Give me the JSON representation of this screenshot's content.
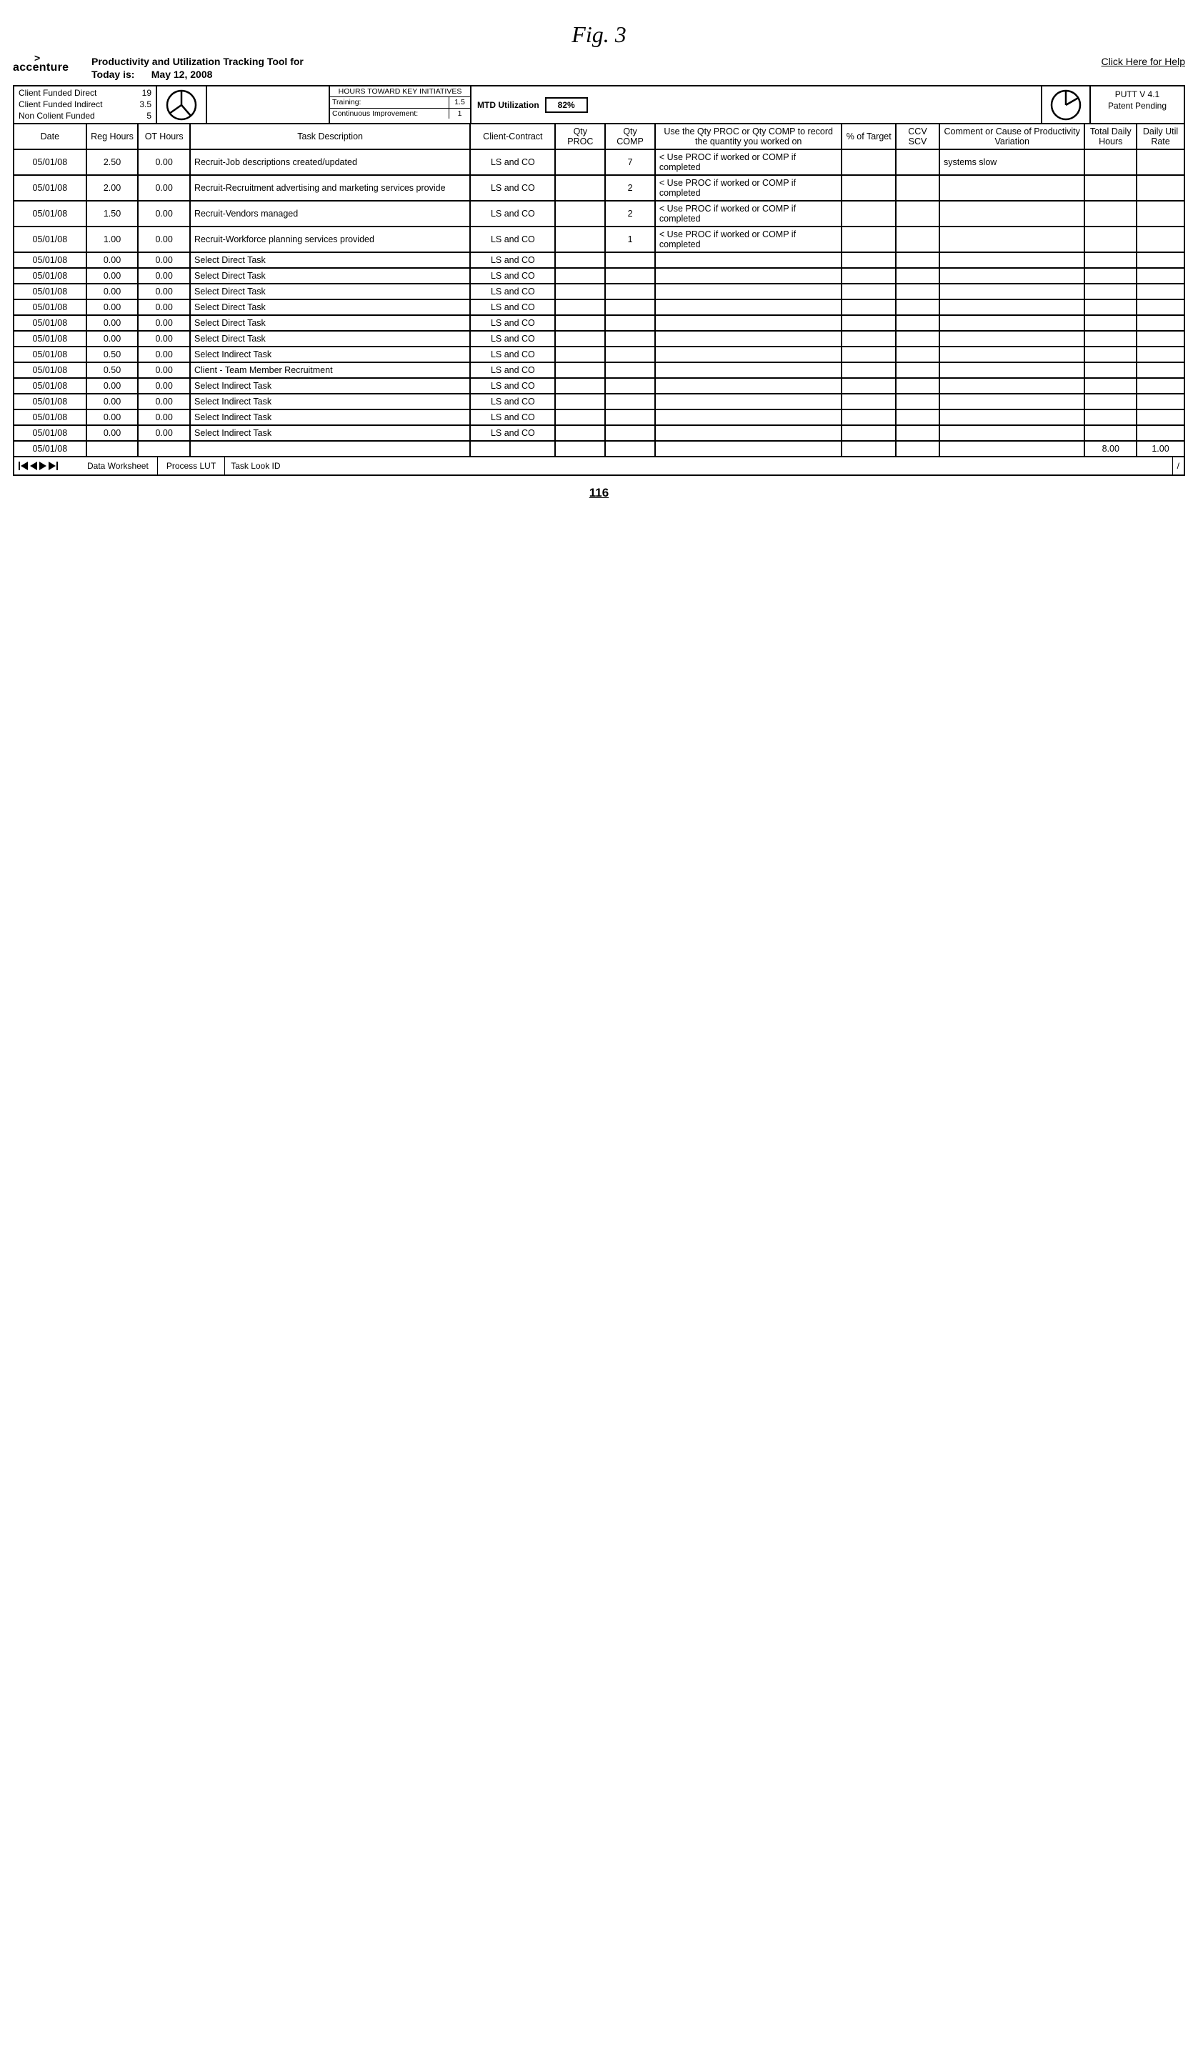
{
  "figure_label": "Fig. 3",
  "logo": "accenture",
  "title": "Productivity and Utilization Tracking Tool for",
  "today_label": "Today is:",
  "today_value": "May 12, 2008",
  "help_link": "Click Here for Help",
  "funding": [
    {
      "label": "Client Funded Direct",
      "value": "19"
    },
    {
      "label": "Client Funded Indirect",
      "value": "3.5"
    },
    {
      "label": "Non Colient Funded",
      "value": "5"
    }
  ],
  "initiatives": {
    "title": "HOURS TOWARD KEY INITIATIVES",
    "rows": [
      {
        "label": "Training:",
        "value": "1.5"
      },
      {
        "label": "Continuous Improvement:",
        "value": "1"
      }
    ]
  },
  "mtd_label": "MTD Utilization",
  "mtd_value": "82%",
  "version_line1": "PUTT V 4.1",
  "version_line2": "Patent Pending",
  "columns": [
    "Date",
    "Reg Hours",
    "OT Hours",
    "Task Description",
    "Client-Contract",
    "Qty PROC",
    "Qty COMP",
    "Use the Qty PROC or Qty COMP to record the quantity you worked on",
    "% of Target",
    "CCV SCV",
    "Comment or Cause of Productivity Variation",
    "Total Daily Hours",
    "Daily Util Rate"
  ],
  "rows": [
    {
      "date": "05/01/08",
      "reg": "2.50",
      "ot": "0.00",
      "desc": "Recruit-Job descriptions created/updated",
      "client": "LS and CO",
      "qp": "",
      "qc": "7",
      "note": "< Use PROC if worked or COMP if completed",
      "pct": "",
      "ccv": "",
      "comment": "systems slow",
      "tdh": "",
      "dur": ""
    },
    {
      "date": "05/01/08",
      "reg": "2.00",
      "ot": "0.00",
      "desc": "Recruit-Recruitment advertising and marketing services provide",
      "client": "LS and CO",
      "qp": "",
      "qc": "2",
      "note": "< Use PROC if worked or COMP if completed",
      "pct": "",
      "ccv": "",
      "comment": "",
      "tdh": "",
      "dur": ""
    },
    {
      "date": "05/01/08",
      "reg": "1.50",
      "ot": "0.00",
      "desc": "Recruit-Vendors managed",
      "client": "LS and CO",
      "qp": "",
      "qc": "2",
      "note": "< Use PROC if worked or COMP if completed",
      "pct": "",
      "ccv": "",
      "comment": "",
      "tdh": "",
      "dur": ""
    },
    {
      "date": "05/01/08",
      "reg": "1.00",
      "ot": "0.00",
      "desc": "Recruit-Workforce planning services provided",
      "client": "LS and CO",
      "qp": "",
      "qc": "1",
      "note": "< Use PROC if worked or COMP if completed",
      "pct": "",
      "ccv": "",
      "comment": "",
      "tdh": "",
      "dur": ""
    },
    {
      "date": "05/01/08",
      "reg": "0.00",
      "ot": "0.00",
      "desc": "Select Direct Task",
      "client": "LS and CO",
      "qp": "",
      "qc": "",
      "note": "",
      "pct": "",
      "ccv": "",
      "comment": "",
      "tdh": "",
      "dur": ""
    },
    {
      "date": "05/01/08",
      "reg": "0.00",
      "ot": "0.00",
      "desc": "Select Direct Task",
      "client": "LS and CO",
      "qp": "",
      "qc": "",
      "note": "",
      "pct": "",
      "ccv": "",
      "comment": "",
      "tdh": "",
      "dur": ""
    },
    {
      "date": "05/01/08",
      "reg": "0.00",
      "ot": "0.00",
      "desc": "Select Direct Task",
      "client": "LS and CO",
      "qp": "",
      "qc": "",
      "note": "",
      "pct": "",
      "ccv": "",
      "comment": "",
      "tdh": "",
      "dur": ""
    },
    {
      "date": "05/01/08",
      "reg": "0.00",
      "ot": "0.00",
      "desc": "Select Direct Task",
      "client": "LS and CO",
      "qp": "",
      "qc": "",
      "note": "",
      "pct": "",
      "ccv": "",
      "comment": "",
      "tdh": "",
      "dur": ""
    },
    {
      "date": "05/01/08",
      "reg": "0.00",
      "ot": "0.00",
      "desc": "Select Direct Task",
      "client": "LS and CO",
      "qp": "",
      "qc": "",
      "note": "",
      "pct": "",
      "ccv": "",
      "comment": "",
      "tdh": "",
      "dur": ""
    },
    {
      "date": "05/01/08",
      "reg": "0.00",
      "ot": "0.00",
      "desc": "Select Direct Task",
      "client": "LS and CO",
      "qp": "",
      "qc": "",
      "note": "",
      "pct": "",
      "ccv": "",
      "comment": "",
      "tdh": "",
      "dur": ""
    },
    {
      "date": "05/01/08",
      "reg": "0.50",
      "ot": "0.00",
      "desc": "Select Indirect Task",
      "client": "LS and CO",
      "qp": "",
      "qc": "",
      "note": "",
      "pct": "",
      "ccv": "",
      "comment": "",
      "tdh": "",
      "dur": ""
    },
    {
      "date": "05/01/08",
      "reg": "0.50",
      "ot": "0.00",
      "desc": "Client - Team Member Recruitment",
      "client": "LS and CO",
      "qp": "",
      "qc": "",
      "note": "",
      "pct": "",
      "ccv": "",
      "comment": "",
      "tdh": "",
      "dur": ""
    },
    {
      "date": "05/01/08",
      "reg": "0.00",
      "ot": "0.00",
      "desc": "Select Indirect Task",
      "client": "LS and CO",
      "qp": "",
      "qc": "",
      "note": "",
      "pct": "",
      "ccv": "",
      "comment": "",
      "tdh": "",
      "dur": ""
    },
    {
      "date": "05/01/08",
      "reg": "0.00",
      "ot": "0.00",
      "desc": "Select Indirect Task",
      "client": "LS and CO",
      "qp": "",
      "qc": "",
      "note": "",
      "pct": "",
      "ccv": "",
      "comment": "",
      "tdh": "",
      "dur": ""
    },
    {
      "date": "05/01/08",
      "reg": "0.00",
      "ot": "0.00",
      "desc": "Select Indirect Task",
      "client": "LS and CO",
      "qp": "",
      "qc": "",
      "note": "",
      "pct": "",
      "ccv": "",
      "comment": "",
      "tdh": "",
      "dur": ""
    },
    {
      "date": "05/01/08",
      "reg": "0.00",
      "ot": "0.00",
      "desc": "Select Indirect Task",
      "client": "LS and CO",
      "qp": "",
      "qc": "",
      "note": "",
      "pct": "",
      "ccv": "",
      "comment": "",
      "tdh": "",
      "dur": ""
    },
    {
      "date": "05/01/08",
      "reg": "",
      "ot": "",
      "desc": "",
      "client": "",
      "qp": "",
      "qc": "",
      "note": "",
      "pct": "",
      "ccv": "",
      "comment": "",
      "tdh": "8.00",
      "dur": "1.00"
    }
  ],
  "footer_tabs": [
    "Data Worksheet",
    "Process LUT",
    "Task Look ID"
  ],
  "ref_number": "116",
  "pie1": {
    "slice_angle_deg": 305
  },
  "pie2": {
    "slice_angle_deg": 60
  },
  "colors": {
    "line": "#000000",
    "bg": "#ffffff"
  }
}
